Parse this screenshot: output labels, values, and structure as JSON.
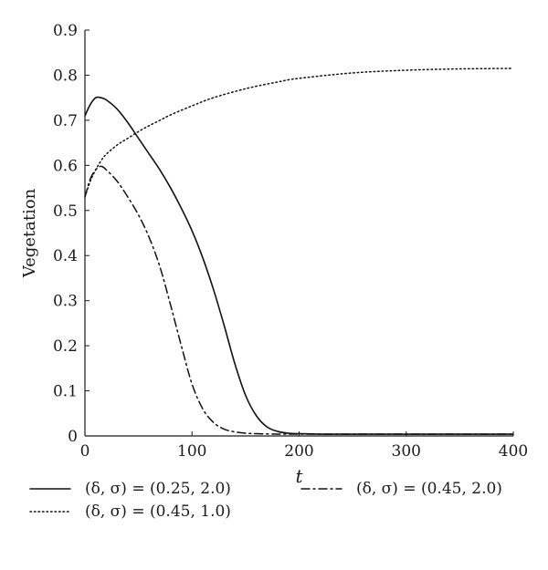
{
  "chart_data": {
    "type": "line",
    "xlabel": "t",
    "ylabel": "Vegetation",
    "xlim": [
      0,
      400
    ],
    "ylim": [
      0,
      0.9
    ],
    "xticks": [
      "0",
      "100",
      "200",
      "300",
      "400"
    ],
    "yticks": [
      "0",
      "0.1",
      "0.2",
      "0.3",
      "0.4",
      "0.5",
      "0.6",
      "0.7",
      "0.8",
      "0.9"
    ],
    "grid": false,
    "legend_position": "bottom",
    "series": [
      {
        "name": "(δ, σ) = (0.25, 2.0)",
        "style": "solid",
        "x": [
          0,
          5,
          10,
          15,
          20,
          30,
          40,
          50,
          60,
          70,
          80,
          90,
          100,
          110,
          120,
          130,
          140,
          150,
          160,
          170,
          180,
          190,
          200,
          220,
          250,
          300,
          350,
          400
        ],
        "y": [
          0.71,
          0.735,
          0.75,
          0.75,
          0.745,
          0.725,
          0.695,
          0.66,
          0.625,
          0.59,
          0.55,
          0.505,
          0.455,
          0.395,
          0.325,
          0.245,
          0.16,
          0.09,
          0.045,
          0.02,
          0.01,
          0.006,
          0.005,
          0.004,
          0.004,
          0.004,
          0.004,
          0.004
        ]
      },
      {
        "name": "(δ, σ) = (0.45, 2.0)",
        "style": "dashdot",
        "x": [
          0,
          5,
          10,
          15,
          20,
          30,
          40,
          50,
          60,
          70,
          80,
          90,
          100,
          110,
          120,
          130,
          140,
          150,
          160,
          180,
          200,
          250,
          300,
          350,
          400
        ],
        "y": [
          0.53,
          0.57,
          0.59,
          0.598,
          0.59,
          0.565,
          0.53,
          0.49,
          0.44,
          0.375,
          0.29,
          0.2,
          0.115,
          0.06,
          0.03,
          0.015,
          0.009,
          0.006,
          0.005,
          0.004,
          0.004,
          0.004,
          0.004,
          0.004,
          0.004
        ]
      },
      {
        "name": "(δ, σ) = (0.45, 1.0)",
        "style": "dotted",
        "x": [
          0,
          5,
          10,
          15,
          20,
          30,
          40,
          50,
          60,
          70,
          80,
          100,
          120,
          150,
          180,
          200,
          250,
          300,
          350,
          400
        ],
        "y": [
          0.53,
          0.565,
          0.59,
          0.61,
          0.625,
          0.645,
          0.66,
          0.675,
          0.688,
          0.7,
          0.712,
          0.732,
          0.75,
          0.77,
          0.785,
          0.793,
          0.805,
          0.811,
          0.814,
          0.815
        ]
      }
    ]
  }
}
